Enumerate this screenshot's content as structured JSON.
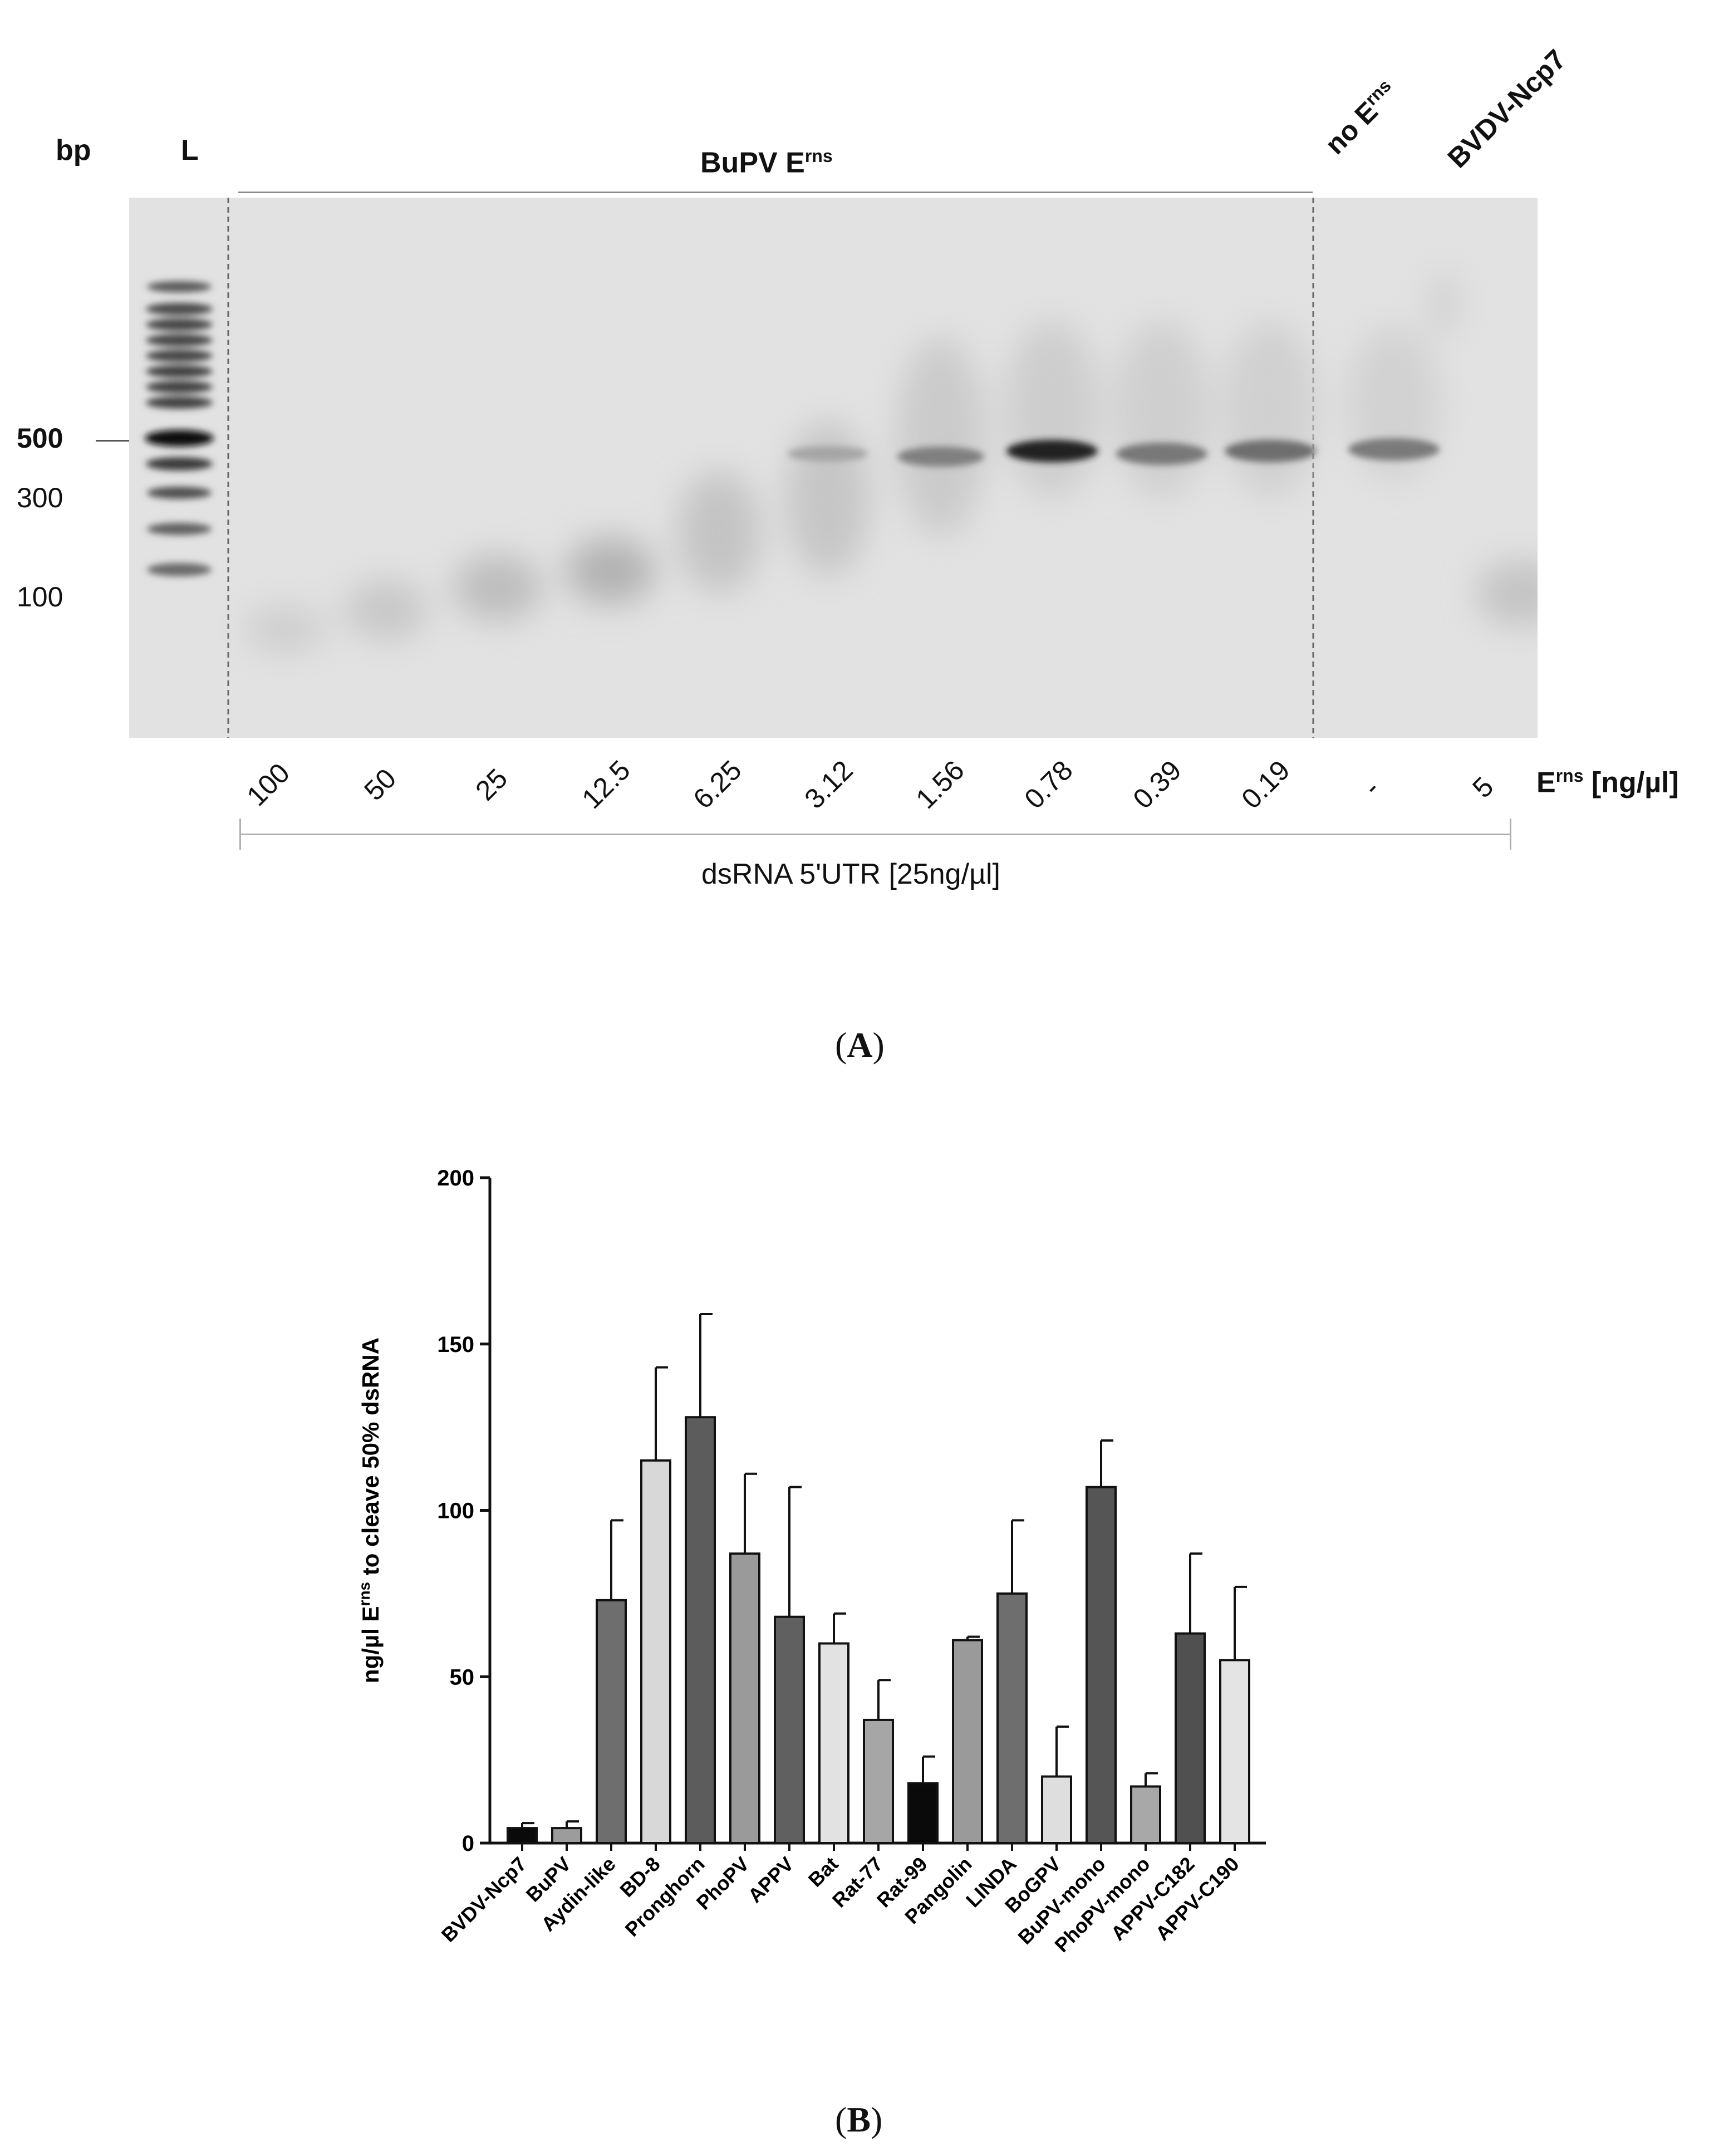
{
  "panel_a": {
    "letter": "A",
    "bp_label": "bp",
    "ladder_label": "L",
    "markers": [
      "500",
      "300",
      "100"
    ],
    "group_label": "BuPV E",
    "group_label_sup": "rns",
    "no_erns_label": "no E",
    "no_erns_sup": "rns",
    "control_label": "BVDV-Ncp7",
    "concentrations": [
      "100",
      "50",
      "25",
      "12.5",
      "6.25",
      "3.12",
      "1.56",
      "0.78",
      "0.39",
      "0.19",
      "-",
      "5"
    ],
    "erns_unit_main": "E",
    "erns_unit_sup": "rns",
    "erns_unit_tail": " [ng/µl]",
    "dsrna_label": "dsRNA 5'UTR [25ng/µl]"
  },
  "panel_b": {
    "letter": "B"
  },
  "chart_data": {
    "type": "bar",
    "ylabel_pre": "ng/µl E",
    "ylabel_sup": "rns",
    "ylabel_post": " to cleave 50% dsRNA",
    "xlabel": "",
    "ylim": [
      0,
      200
    ],
    "yticks": [
      "0",
      "50",
      "100",
      "150",
      "200"
    ],
    "categories": [
      "BVDV-Ncp7",
      "BuPV",
      "Aydin-like",
      "BD-8",
      "Pronghorn",
      "PhoPV",
      "APPV",
      "Bat",
      "Rat-77",
      "Rat-99",
      "Pangolin",
      "LINDA",
      "BoGPV",
      "BuPV-mono",
      "PhoPV-mono",
      "APPV-C182",
      "APPV-C190"
    ],
    "values": [
      4.5,
      4.5,
      73,
      115,
      128,
      87,
      68,
      60,
      37,
      18,
      61,
      75,
      20,
      107,
      17,
      63,
      55
    ],
    "errors": [
      1.5,
      2,
      24,
      28,
      31,
      24,
      39,
      9,
      12,
      8,
      1,
      22,
      15,
      14,
      4,
      24,
      22
    ],
    "colors": [
      "#0a0a0a",
      "#9c9c9c",
      "#6e6e6e",
      "#d8d8d8",
      "#5c5c5c",
      "#9a9a9a",
      "#606060",
      "#e2e2e2",
      "#a6a6a6",
      "#0a0a0a",
      "#9a9a9a",
      "#6e6e6e",
      "#dedede",
      "#555555",
      "#a8a8a8",
      "#505050",
      "#e4e4e4"
    ]
  }
}
